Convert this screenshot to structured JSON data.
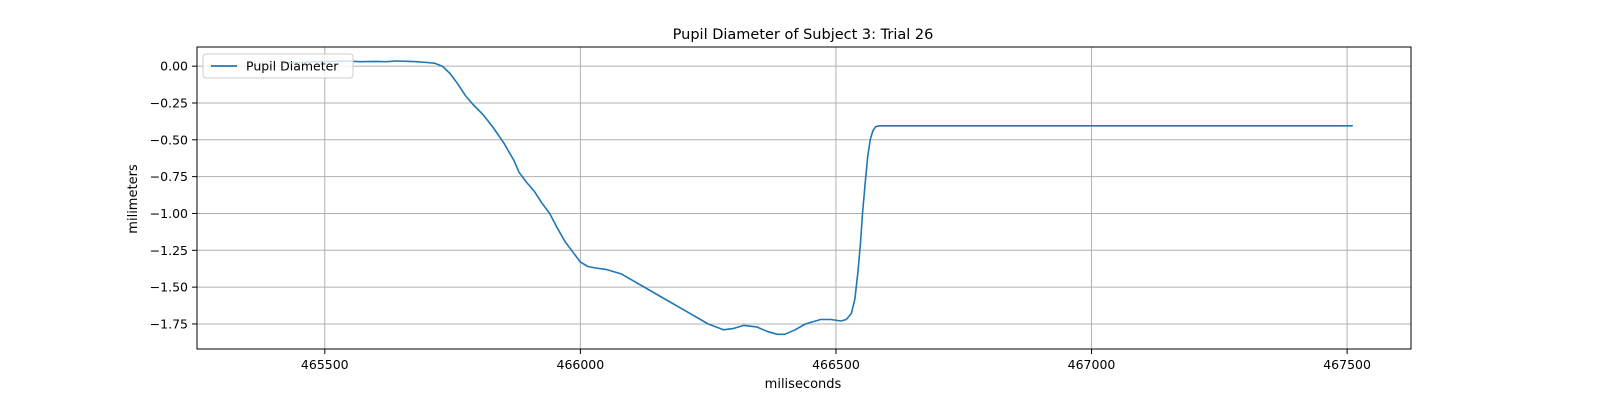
{
  "chart_data": {
    "type": "line",
    "title": "Pupil Diameter of Subject 3: Trial 26",
    "xlabel": "miliseconds",
    "ylabel": "milimeters",
    "xlim": [
      465250,
      467625
    ],
    "ylim": [
      -1.92,
      0.13
    ],
    "xticks": [
      465500,
      466000,
      466500,
      467000,
      467500
    ],
    "xtick_labels": [
      "465500",
      "466000",
      "466500",
      "467000",
      "467500"
    ],
    "yticks": [
      0.0,
      -0.25,
      -0.5,
      -0.75,
      -1.0,
      -1.25,
      -1.5,
      -1.75
    ],
    "ytick_labels": [
      "0.00",
      "−0.25",
      "−0.50",
      "−0.75",
      "−1.00",
      "−1.25",
      "−1.50",
      "−1.75"
    ],
    "grid": true,
    "legend_position": "top-left",
    "series": [
      {
        "name": "Pupil Diameter",
        "color": "#1f77b4",
        "x": [
          465420,
          465450,
          465480,
          465510,
          465540,
          465570,
          465600,
          465620,
          465640,
          465660,
          465680,
          465700,
          465715,
          465730,
          465745,
          465760,
          465775,
          465790,
          465810,
          465830,
          465850,
          465870,
          465880,
          465895,
          465910,
          465925,
          465940,
          465955,
          465970,
          465985,
          466000,
          466015,
          466030,
          466050,
          466080,
          466100,
          466150,
          466200,
          466250,
          466280,
          466300,
          466320,
          466345,
          466365,
          466385,
          466400,
          466420,
          466440,
          466470,
          466490,
          466510,
          466520,
          466530,
          466537,
          466543,
          466548,
          466552,
          466557,
          466562,
          466567,
          466572,
          466578,
          466585,
          466595,
          466620,
          467000,
          467510
        ],
        "values": [
          0.02,
          0.025,
          0.03,
          0.032,
          0.035,
          0.03,
          0.032,
          0.03,
          0.035,
          0.033,
          0.03,
          0.025,
          0.02,
          0.0,
          -0.05,
          -0.12,
          -0.2,
          -0.26,
          -0.33,
          -0.42,
          -0.52,
          -0.64,
          -0.72,
          -0.79,
          -0.85,
          -0.93,
          -1.0,
          -1.1,
          -1.19,
          -1.26,
          -1.33,
          -1.36,
          -1.37,
          -1.38,
          -1.41,
          -1.45,
          -1.55,
          -1.65,
          -1.75,
          -1.79,
          -1.78,
          -1.76,
          -1.77,
          -1.8,
          -1.82,
          -1.82,
          -1.79,
          -1.75,
          -1.72,
          -1.72,
          -1.73,
          -1.72,
          -1.68,
          -1.58,
          -1.4,
          -1.2,
          -1.0,
          -0.8,
          -0.62,
          -0.5,
          -0.44,
          -0.41,
          -0.405,
          -0.405,
          -0.405,
          -0.405,
          -0.405
        ]
      }
    ]
  }
}
